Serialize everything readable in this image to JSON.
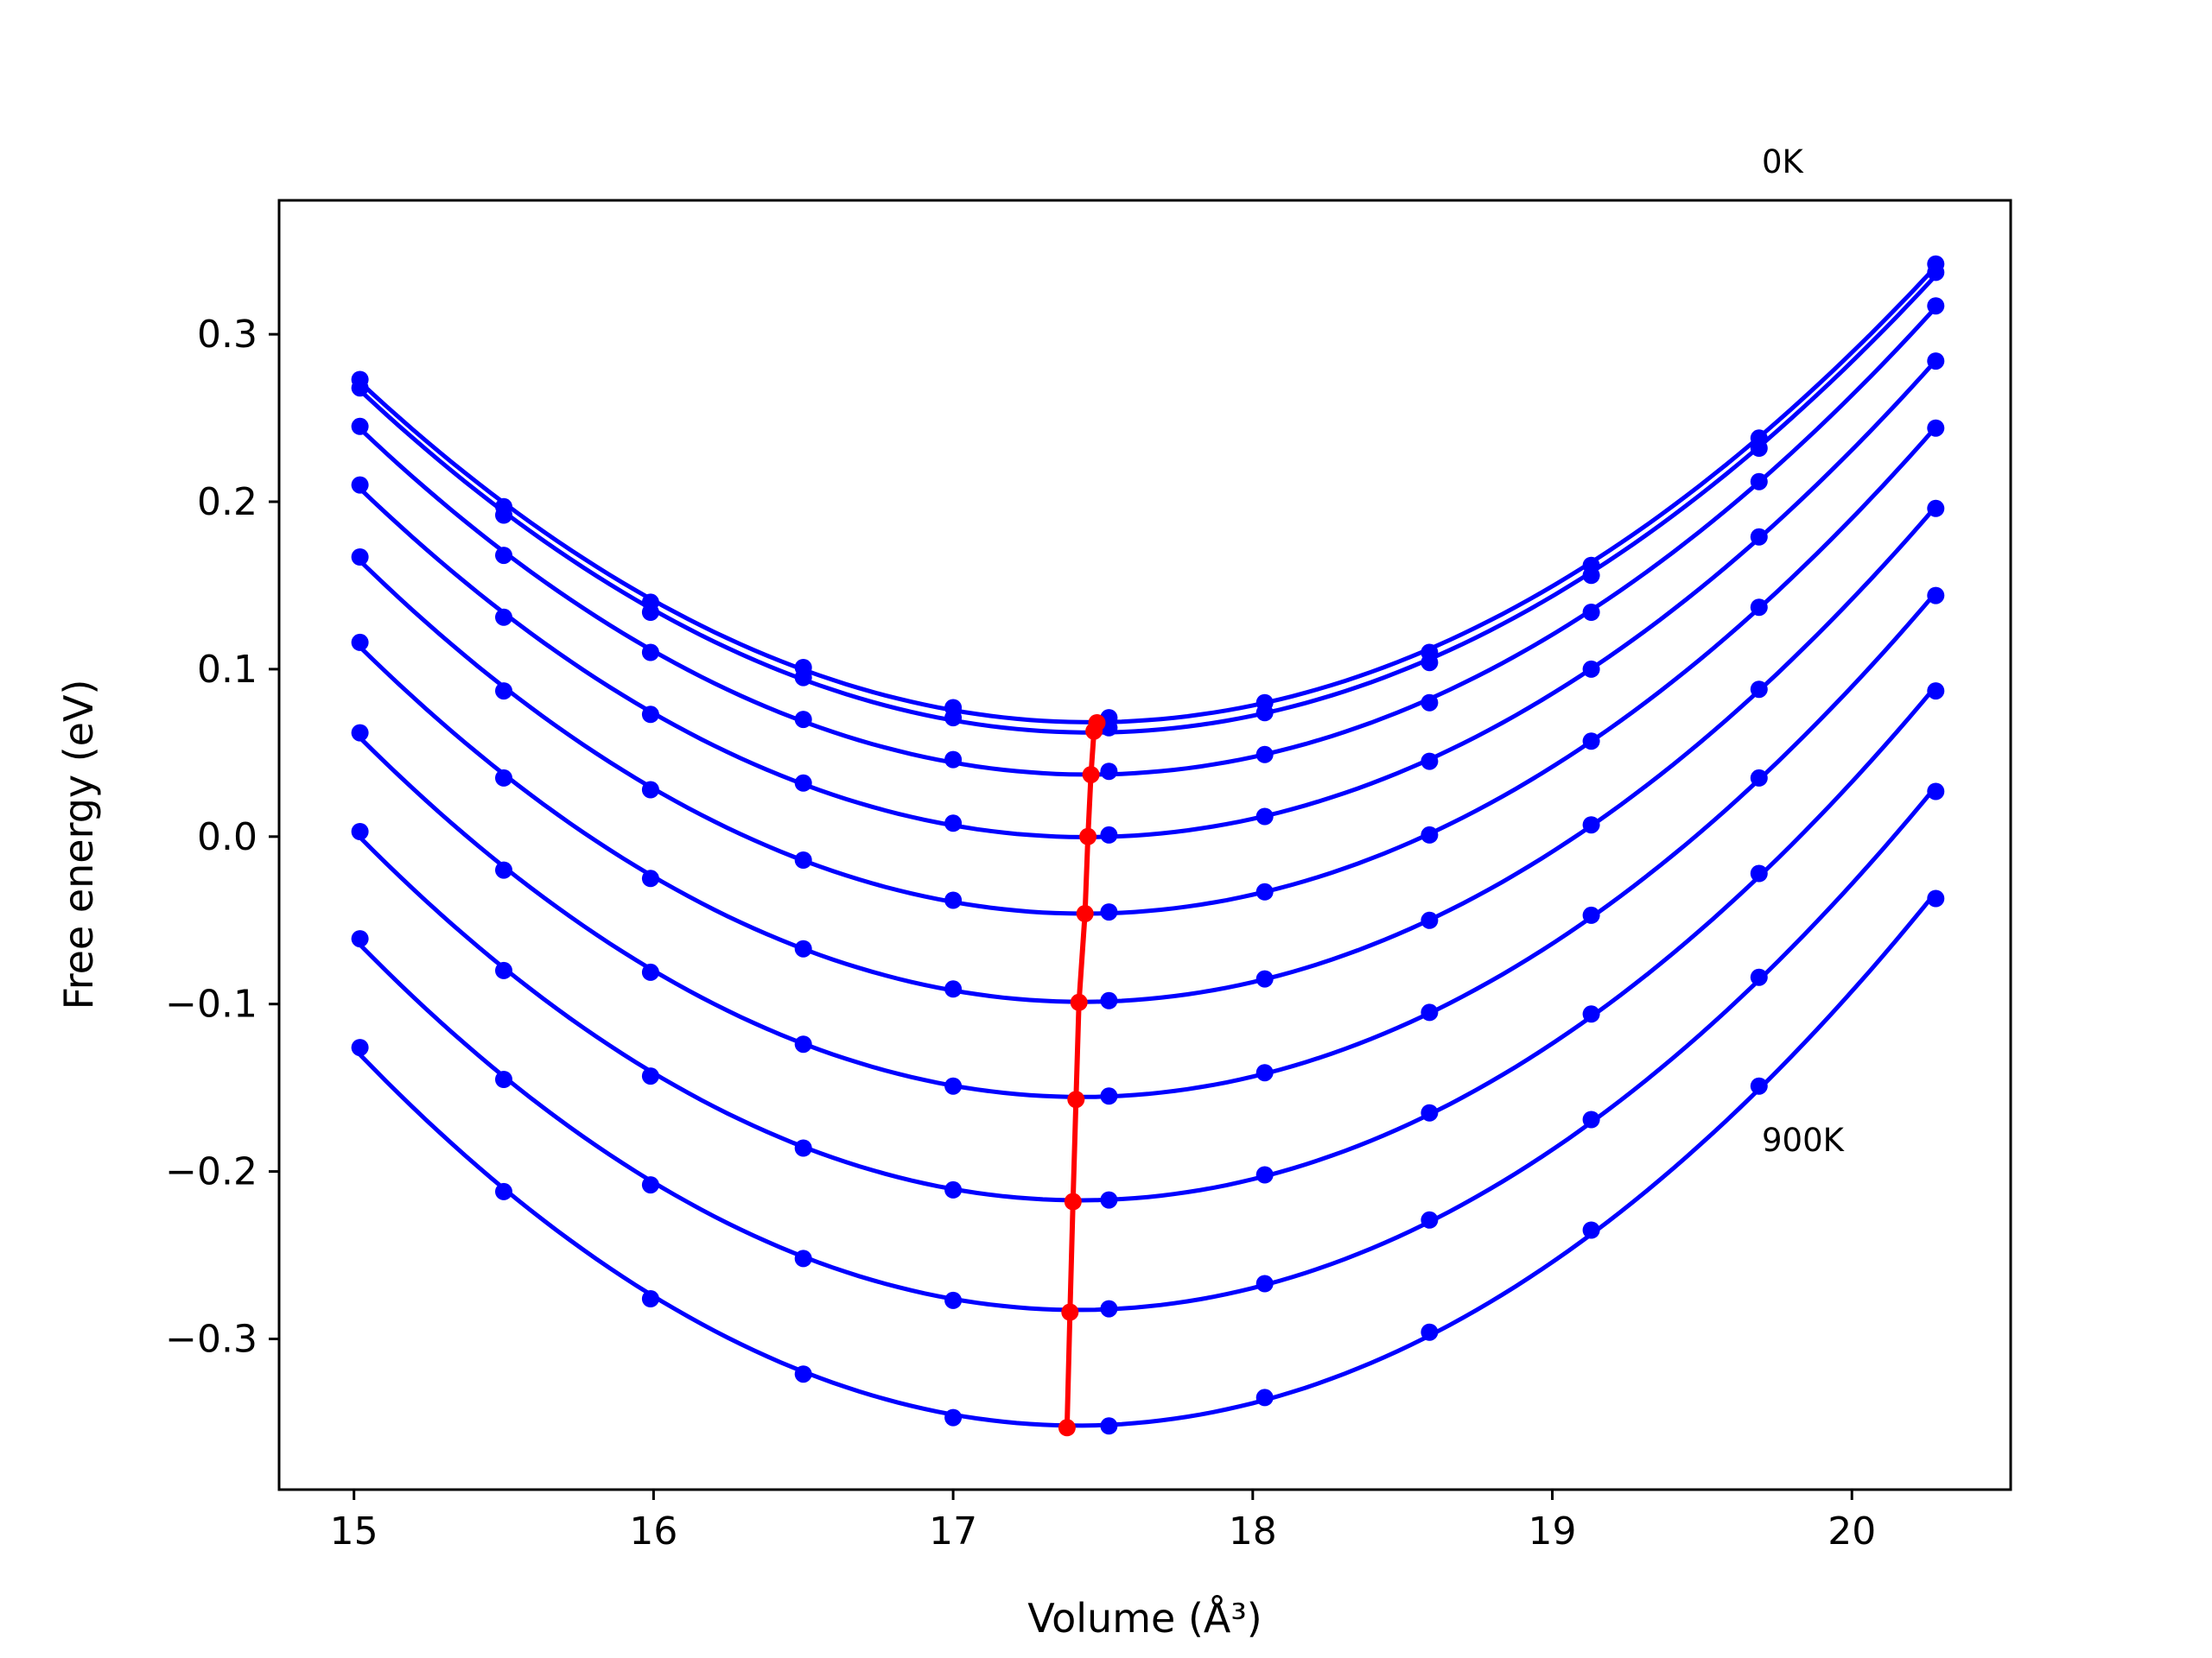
{
  "chart_data": {
    "type": "line",
    "title": "",
    "xlabel": "Volume (Å³)",
    "ylabel": "Free energy (eV)",
    "xlim": [
      14.75,
      20.53
    ],
    "ylim": [
      -0.39,
      0.38
    ],
    "xticks": [
      15,
      16,
      17,
      18,
      19,
      20
    ],
    "yticks": [
      -0.3,
      -0.2,
      -0.1,
      0.0,
      0.1,
      0.2,
      0.3
    ],
    "xtick_labels": [
      "15",
      "16",
      "17",
      "18",
      "19",
      "20"
    ],
    "ytick_labels": [
      "−0.3",
      "−0.2",
      "−0.1",
      "0.0",
      "0.1",
      "0.2",
      "0.3"
    ],
    "grid": false,
    "legend": "none",
    "annotations": [
      {
        "text": "0K",
        "x": 19.69,
        "y": 0.4
      },
      {
        "text": "900K",
        "x": 19.69,
        "y": -0.18
      }
    ],
    "curve_color": "#0000ff",
    "min_line_color": "#ff0000",
    "volumes": [
      15.02,
      15.5,
      15.99,
      16.5,
      17.0,
      17.52,
      18.04,
      18.59,
      19.13,
      19.69,
      20.28
    ],
    "series": [
      {
        "values": [
          0.273,
          0.197,
          0.14,
          0.101,
          0.077,
          0.071,
          0.08,
          0.11,
          0.162,
          0.238,
          0.342
        ]
      },
      {
        "values": [
          0.268,
          0.192,
          0.134,
          0.095,
          0.071,
          0.065,
          0.074,
          0.104,
          0.156,
          0.232,
          0.337
        ]
      },
      {
        "values": [
          0.245,
          0.168,
          0.11,
          0.07,
          0.046,
          0.039,
          0.049,
          0.08,
          0.134,
          0.212,
          0.317
        ]
      },
      {
        "values": [
          0.21,
          0.131,
          0.073,
          0.032,
          0.008,
          0.001,
          0.012,
          0.045,
          0.1,
          0.179,
          0.284
        ]
      },
      {
        "values": [
          0.167,
          0.087,
          0.028,
          -0.014,
          -0.038,
          -0.045,
          -0.033,
          0.001,
          0.057,
          0.137,
          0.244
        ]
      },
      {
        "values": [
          0.116,
          0.035,
          -0.025,
          -0.067,
          -0.091,
          -0.098,
          -0.085,
          -0.05,
          0.007,
          0.088,
          0.196
        ]
      },
      {
        "values": [
          0.062,
          -0.02,
          -0.081,
          -0.124,
          -0.149,
          -0.155,
          -0.141,
          -0.105,
          -0.047,
          0.035,
          0.144
        ]
      },
      {
        "values": [
          0.003,
          -0.08,
          -0.143,
          -0.186,
          -0.211,
          -0.217,
          -0.202,
          -0.165,
          -0.106,
          -0.022,
          0.087
        ]
      },
      {
        "values": [
          -0.061,
          -0.145,
          -0.208,
          -0.252,
          -0.277,
          -0.282,
          -0.267,
          -0.229,
          -0.169,
          -0.084,
          0.027
        ]
      },
      {
        "values": [
          -0.126,
          -0.212,
          -0.276,
          -0.321,
          -0.347,
          -0.352,
          -0.335,
          -0.296,
          -0.235,
          -0.149,
          -0.037
        ]
      }
    ],
    "minima": [
      {
        "x": 17.48,
        "y": 0.068
      },
      {
        "x": 17.47,
        "y": 0.063
      },
      {
        "x": 17.46,
        "y": 0.037
      },
      {
        "x": 17.45,
        "y": 0.0
      },
      {
        "x": 17.44,
        "y": -0.046
      },
      {
        "x": 17.42,
        "y": -0.099
      },
      {
        "x": 17.41,
        "y": -0.157
      },
      {
        "x": 17.4,
        "y": -0.218
      },
      {
        "x": 17.39,
        "y": -0.284
      },
      {
        "x": 17.38,
        "y": -0.353
      }
    ]
  }
}
